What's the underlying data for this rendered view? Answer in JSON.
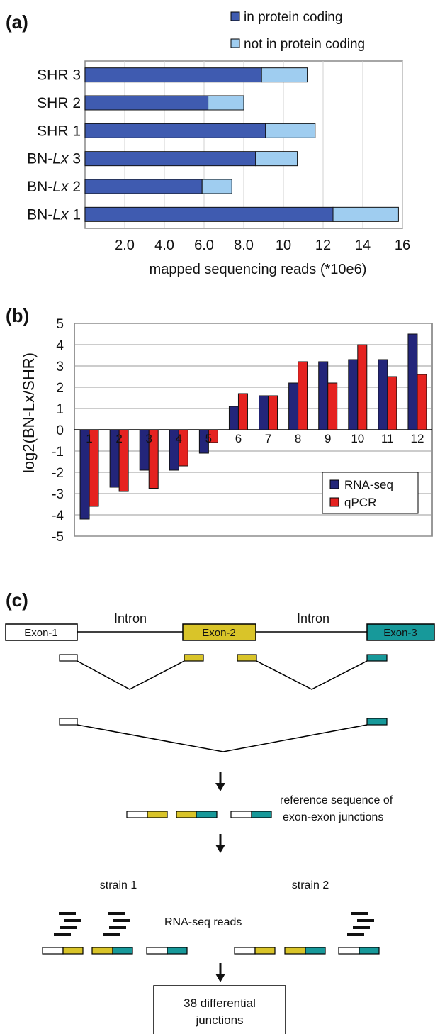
{
  "panels": {
    "a": "(a)",
    "b": "(b)",
    "c": "(c)"
  },
  "chart_data": [
    {
      "type": "bar",
      "orientation": "horizontal",
      "stacked": true,
      "categories": [
        "SHR 3",
        "SHR 2",
        "SHR 1",
        "BN-Lx 3",
        "BN-Lx 2",
        "BN-Lx 1"
      ],
      "category_labels": [
        {
          "prefix": "SHR 3",
          "italic": "",
          "suffix": ""
        },
        {
          "prefix": "SHR 2",
          "italic": "",
          "suffix": ""
        },
        {
          "prefix": "SHR 1",
          "italic": "",
          "suffix": ""
        },
        {
          "prefix": "BN-",
          "italic": "Lx",
          "suffix": " 3"
        },
        {
          "prefix": "BN-",
          "italic": "Lx",
          "suffix": " 2"
        },
        {
          "prefix": "BN-",
          "italic": "Lx",
          "suffix": " 1"
        }
      ],
      "series": [
        {
          "name": "in protein coding",
          "color": "#3f5bb0",
          "values": [
            8.9,
            6.2,
            9.1,
            8.6,
            5.9,
            12.5
          ]
        },
        {
          "name": "not in protein coding",
          "color": "#9fcdf0",
          "values": [
            2.3,
            1.8,
            2.5,
            2.1,
            1.5,
            3.3
          ]
        }
      ],
      "xlabel": "mapped sequencing reads (*10e6)",
      "xlim": [
        0,
        16
      ],
      "xticks": [
        2,
        4,
        6,
        8,
        10,
        12,
        14,
        16
      ],
      "xtick_labels": [
        "2.0",
        "4.0",
        "6.0",
        "8.0",
        "10",
        "12",
        "14",
        "16"
      ],
      "grid": "vertical",
      "legend": "top-right"
    },
    {
      "type": "bar",
      "orientation": "vertical",
      "categories": [
        "1",
        "2",
        "3",
        "4",
        "5",
        "6",
        "7",
        "8",
        "9",
        "10",
        "11",
        "12"
      ],
      "series": [
        {
          "name": "RNA-seq",
          "color": "#23257a",
          "values": [
            -4.2,
            -2.7,
            -1.9,
            -1.9,
            -1.1,
            1.1,
            1.6,
            2.2,
            3.2,
            3.3,
            3.3,
            4.5
          ]
        },
        {
          "name": "qPCR",
          "color": "#e52220",
          "values": [
            -3.6,
            -2.9,
            -2.75,
            -1.7,
            -0.6,
            1.7,
            1.6,
            3.2,
            2.2,
            4.0,
            2.5,
            2.6
          ]
        }
      ],
      "ylabel": "log2(BN-Lx/SHR)",
      "ylim": [
        -5,
        5
      ],
      "yticks": [
        -5,
        -4,
        -3,
        -2,
        -1,
        0,
        1,
        2,
        3,
        4,
        5
      ],
      "grid": "horizontal",
      "legend": "bottom-right"
    }
  ],
  "diagram": {
    "exons": [
      "Exon-1",
      "Exon-2",
      "Exon-3"
    ],
    "introns": [
      "Intron",
      "Intron"
    ],
    "colors": {
      "exon1": "#ffffff",
      "exon2": "#d9c429",
      "exon3": "#17999a"
    },
    "reference_label_1": "reference sequence of",
    "reference_label_2": "exon-exon junctions",
    "strain_1": "strain 1",
    "strain_2": "strain 2",
    "reads_label": "RNA-seq reads",
    "result_line_1": "38 differential",
    "result_line_2": "junctions"
  }
}
